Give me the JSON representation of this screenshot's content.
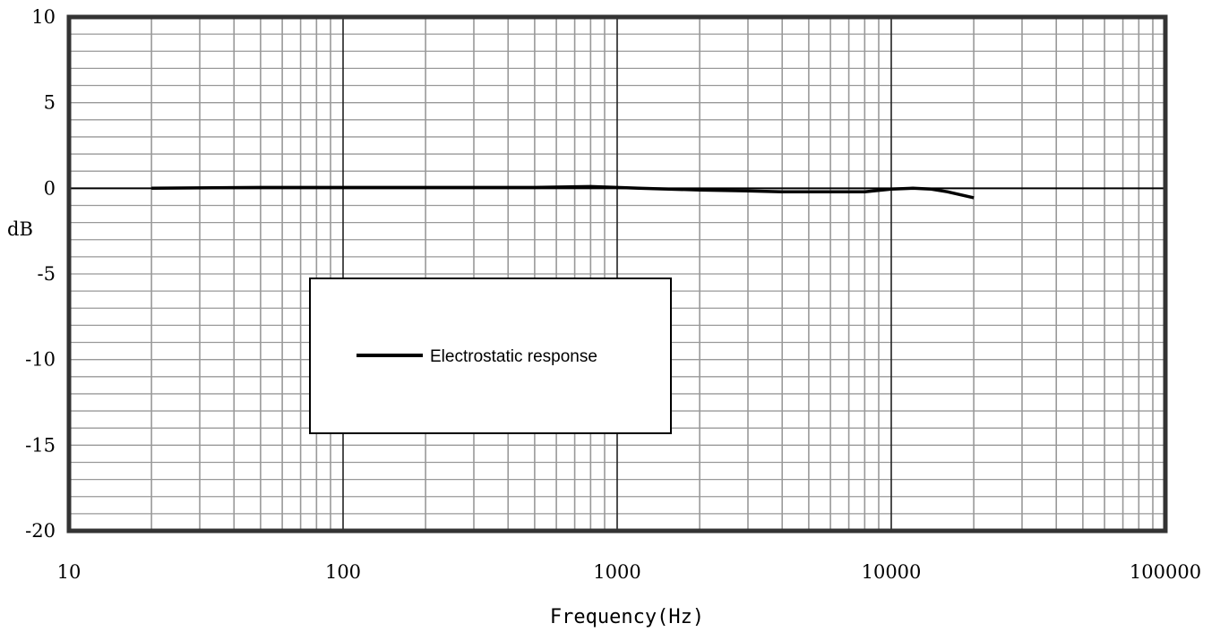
{
  "chart_data": {
    "type": "line",
    "title": "",
    "xlabel": "Frequency(Hz)",
    "ylabel": "dB",
    "x_scale": "log",
    "xlim": [
      10,
      100000
    ],
    "ylim": [
      -20,
      10
    ],
    "x_ticks": [
      "10",
      "100",
      "1000",
      "10000",
      "100000"
    ],
    "y_ticks": [
      "10",
      "5",
      "0",
      "-5",
      "-10",
      "-15",
      "-20"
    ],
    "grid": true,
    "legend_position": "center-left",
    "series": [
      {
        "name": "Electrostatic response",
        "color": "#000000",
        "points": [
          [
            20,
            0.0
          ],
          [
            50,
            0.05
          ],
          [
            100,
            0.05
          ],
          [
            200,
            0.05
          ],
          [
            500,
            0.05
          ],
          [
            800,
            0.1
          ],
          [
            1000,
            0.05
          ],
          [
            1200,
            0.0
          ],
          [
            2000,
            -0.1
          ],
          [
            3000,
            -0.15
          ],
          [
            4000,
            -0.2
          ],
          [
            6000,
            -0.2
          ],
          [
            8000,
            -0.2
          ],
          [
            10000,
            -0.05
          ],
          [
            12000,
            0.0
          ],
          [
            14000,
            -0.05
          ],
          [
            16000,
            -0.2
          ],
          [
            20000,
            -0.55
          ]
        ]
      }
    ]
  }
}
